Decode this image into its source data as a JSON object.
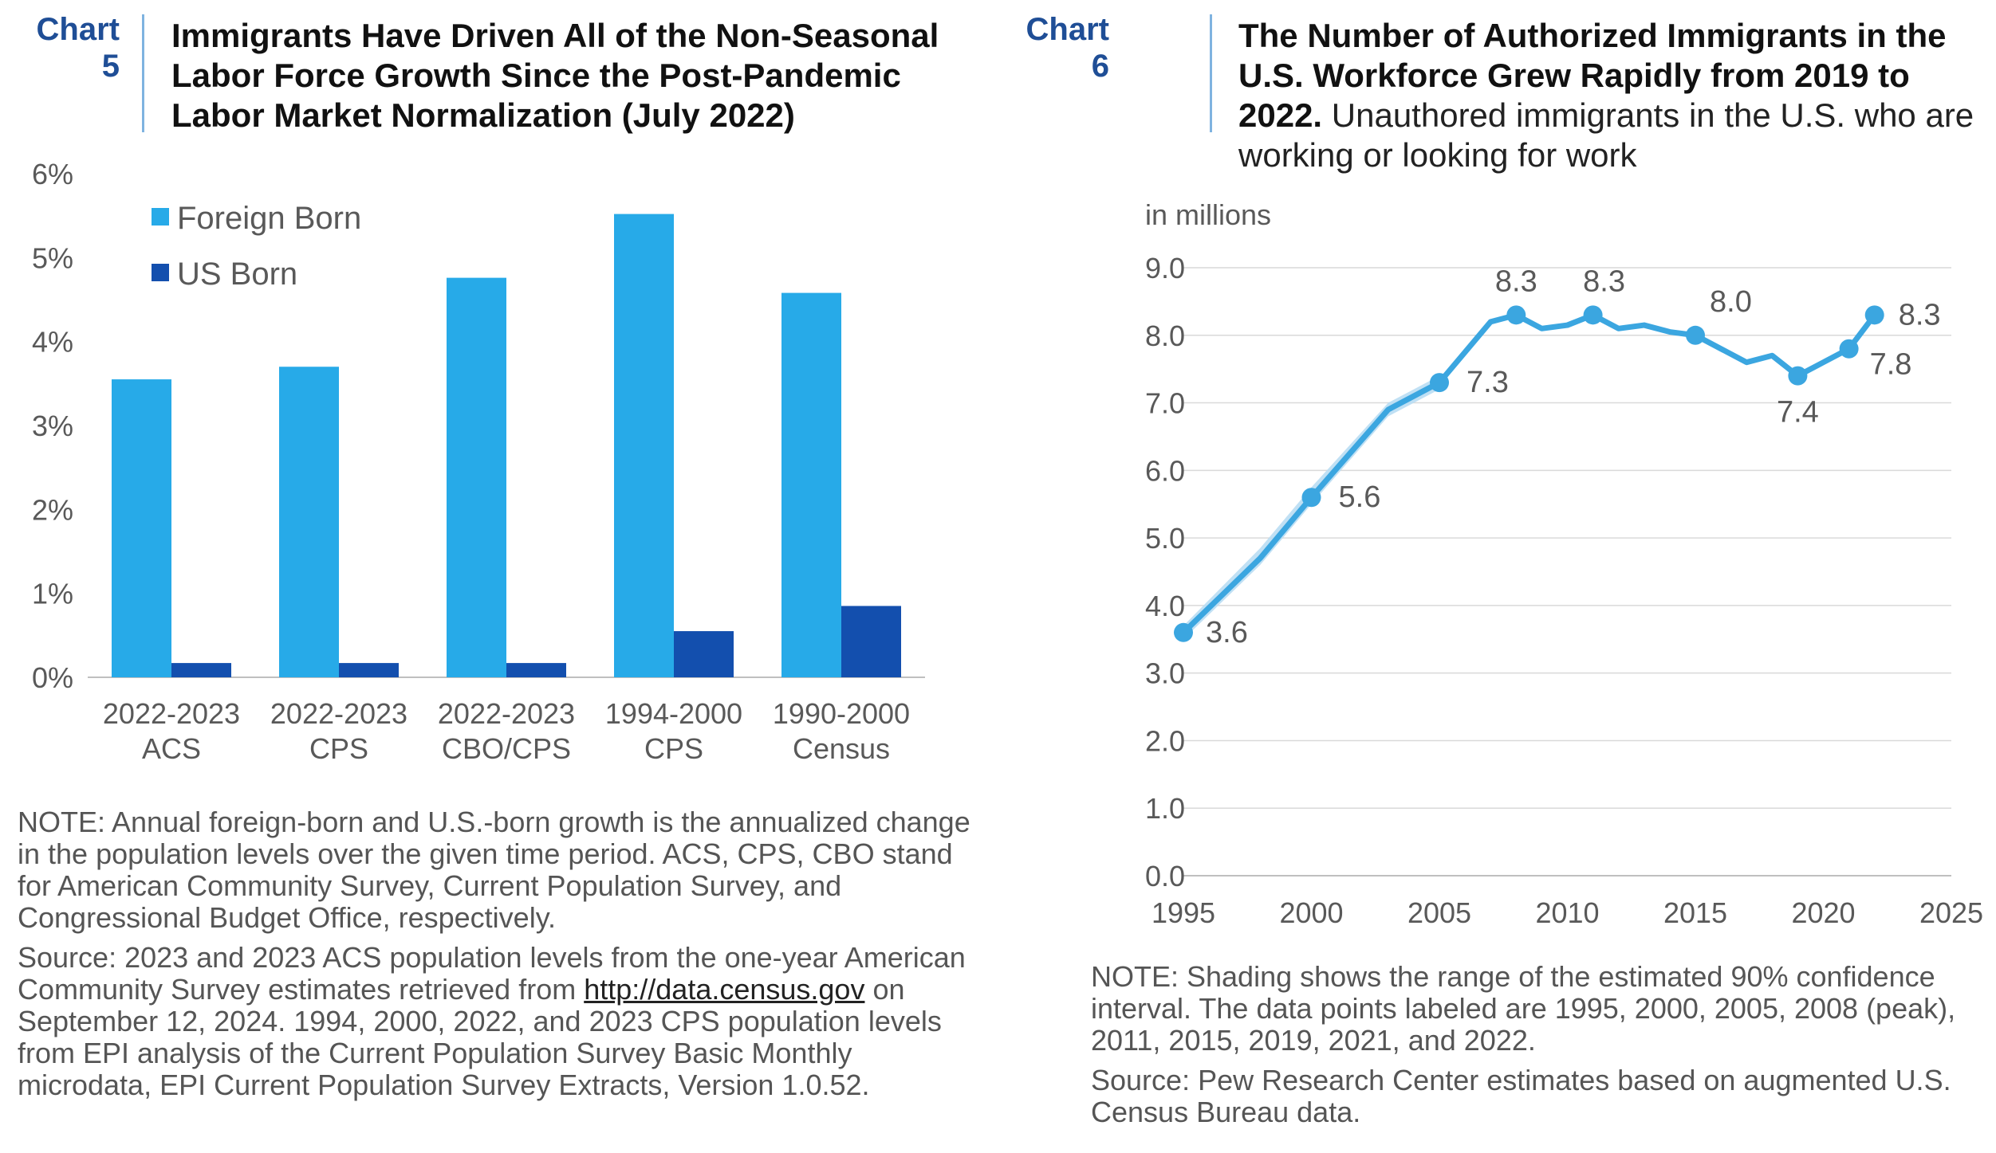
{
  "chart5": {
    "tag_label": "Chart",
    "tag_number": "5",
    "title": "Immigrants Have Driven All of the Non-Seasonal Labor Force Growth Since the Post-Pandemic Labor Market Normalization (July 2022)",
    "note": "NOTE: Annual foreign-born and U.S.-born growth is the annualized change in the population levels over the given time period. ACS, CPS, CBO stand for American Community Survey, Current Population Survey, and Congressional Budget Office, respectively.",
    "source_prefix": "Source: 2023 and 2023 ACS population levels from the one-year American Community Survey estimates retrieved from ",
    "source_link": "http://data.census.gov",
    "source_suffix": " on September 12, 2024. 1994, 2000, 2022, and 2023 CPS population levels from EPI analysis of the Current Population Survey Basic Monthly microdata, EPI Current Population Survey Extracts, Version 1.0.52."
  },
  "chart6": {
    "tag_label": "Chart",
    "tag_number": "6",
    "title_bold": "The Number of Authorized Immigrants in the U.S. Workforce Grew Rapidly from 2019 to 2022.",
    "title_rest": " Unauthored immigrants in the U.S. who are working or looking for work",
    "note": "NOTE: Shading shows the range of the estimated 90% confidence interval. The data points labeled are 1995, 2000, 2005, 2008 (peak), 2011, 2015, 2019, 2021, and 2022.",
    "source": "Source: Pew Research Center estimates based on augmented U.S. Census Bureau data."
  },
  "colors": {
    "foreign_born": "#27aae8",
    "us_born": "#134fae",
    "line": "#3ba6e0",
    "band": "#b9ddf3",
    "axis": "#bfbfbf",
    "grid": "#d9d9d9",
    "tag": "#1f4e96"
  },
  "chart_data": [
    {
      "type": "bar",
      "title": "Immigrants Have Driven All of the Non-Seasonal Labor Force Growth Since the Post-Pandemic Labor Market Normalization (July 2022)",
      "categories": [
        [
          "2022-2023",
          "ACS"
        ],
        [
          "2022-2023",
          "CPS"
        ],
        [
          "2022-2023",
          "CBO/CPS"
        ],
        [
          "1994-2000",
          "CPS"
        ],
        [
          "1990-2000",
          "Census"
        ]
      ],
      "series": [
        {
          "name": "Foreign Born",
          "values": [
            3.55,
            3.7,
            4.76,
            5.52,
            4.58
          ]
        },
        {
          "name": "US Born",
          "values": [
            0.17,
            0.17,
            0.17,
            0.55,
            0.85
          ]
        }
      ],
      "ylim": [
        0,
        6
      ],
      "yticks": [
        0,
        1,
        2,
        3,
        4,
        5,
        6
      ],
      "ytick_labels": [
        "0%",
        "1%",
        "2%",
        "3%",
        "4%",
        "5%",
        "6%"
      ],
      "legend_position": "top-left",
      "grid": false
    },
    {
      "type": "line",
      "title": "The Number of Authorized Immigrants in the U.S. Workforce Grew Rapidly from 2019 to 2022.",
      "ylabel": "in millions",
      "xlim": [
        1995,
        2025
      ],
      "ylim": [
        0,
        9
      ],
      "xticks": [
        1995,
        2000,
        2005,
        2010,
        2015,
        2020,
        2025
      ],
      "yticks": [
        0,
        1,
        2,
        3,
        4,
        5,
        6,
        7,
        8,
        9
      ],
      "ytick_labels": [
        "0.0",
        "1.0",
        "2.0",
        "3.0",
        "4.0",
        "5.0",
        "6.0",
        "7.0",
        "8.0",
        "9.0"
      ],
      "grid": true,
      "x": [
        1995,
        1998,
        2000,
        2003,
        2005,
        2007,
        2008,
        2009,
        2010,
        2011,
        2012,
        2013,
        2014,
        2015,
        2016,
        2017,
        2018,
        2019,
        2021,
        2022
      ],
      "y": [
        3.6,
        4.7,
        5.6,
        6.9,
        7.3,
        8.2,
        8.3,
        8.1,
        8.15,
        8.3,
        8.1,
        8.15,
        8.05,
        8.0,
        7.8,
        7.6,
        7.7,
        7.4,
        7.8,
        8.3
      ],
      "band_x": [
        1995,
        1998,
        2000,
        2003,
        2005
      ],
      "band_low": [
        3.5,
        4.6,
        5.5,
        6.8,
        7.2
      ],
      "band_high": [
        3.7,
        4.85,
        5.75,
        7.0,
        7.4
      ],
      "labeled_points": [
        {
          "x": 1995,
          "y": 3.6,
          "label": "3.6"
        },
        {
          "x": 2000,
          "y": 5.6,
          "label": "5.6"
        },
        {
          "x": 2005,
          "y": 7.3,
          "label": "7.3"
        },
        {
          "x": 2008,
          "y": 8.3,
          "label": "8.3"
        },
        {
          "x": 2011,
          "y": 8.3,
          "label": "8.3"
        },
        {
          "x": 2015,
          "y": 8.0,
          "label": "8.0"
        },
        {
          "x": 2019,
          "y": 7.4,
          "label": "7.4"
        },
        {
          "x": 2021,
          "y": 7.8,
          "label": "7.8"
        },
        {
          "x": 2022,
          "y": 8.3,
          "label": "8.3"
        }
      ]
    }
  ]
}
